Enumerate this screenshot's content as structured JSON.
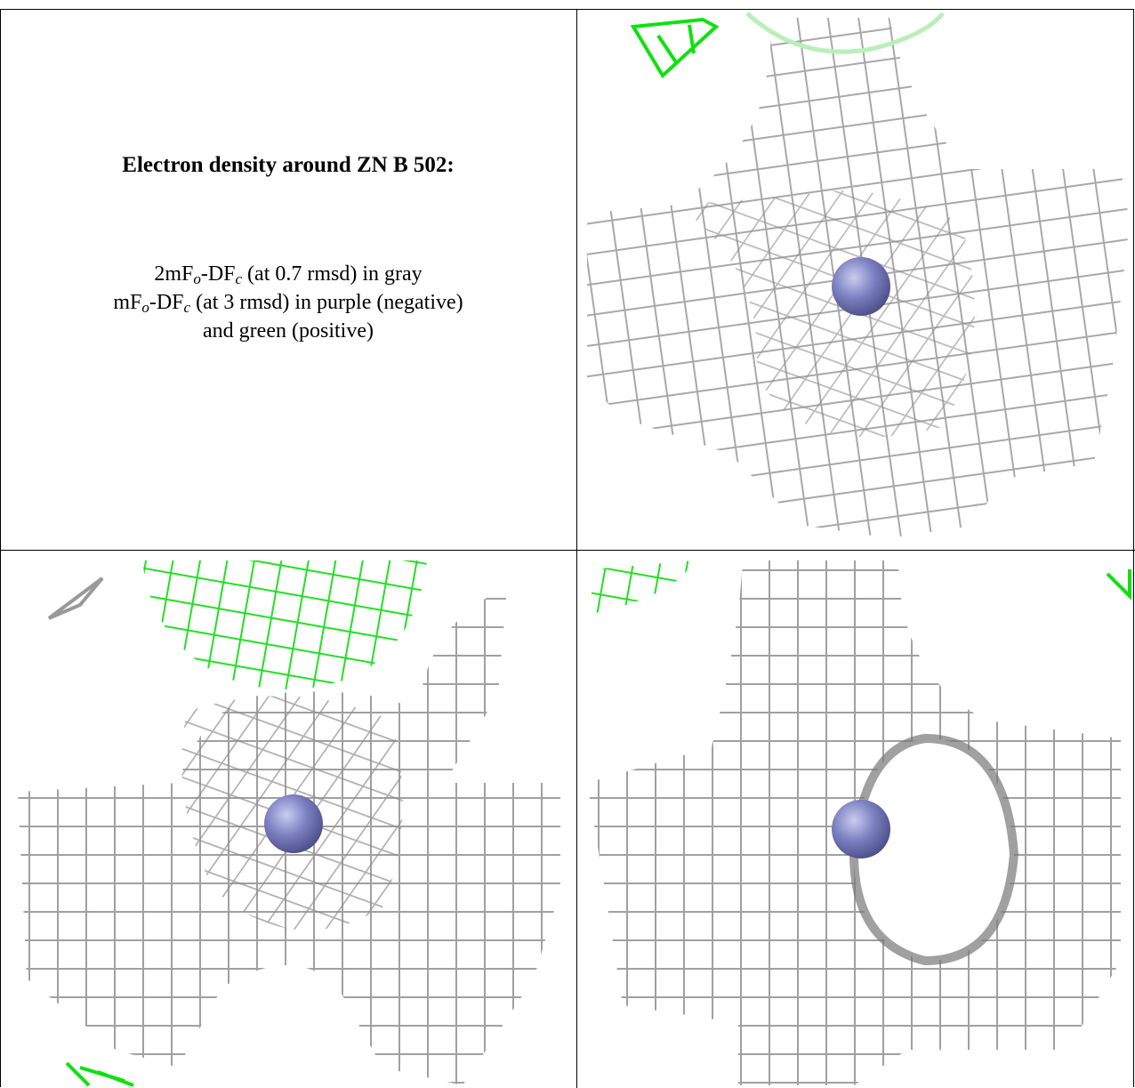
{
  "caption": {
    "title": "Electron density around ZN B 502:",
    "lines": [
      [
        "2mF",
        "o",
        "-DF",
        "c",
        " (at 0.7 rmsd) in gray"
      ],
      [
        "mF",
        "o",
        "-DF",
        "c",
        " (at 3 rmsd) in purple (negative)"
      ],
      [
        "and green (positive)"
      ]
    ]
  }
}
